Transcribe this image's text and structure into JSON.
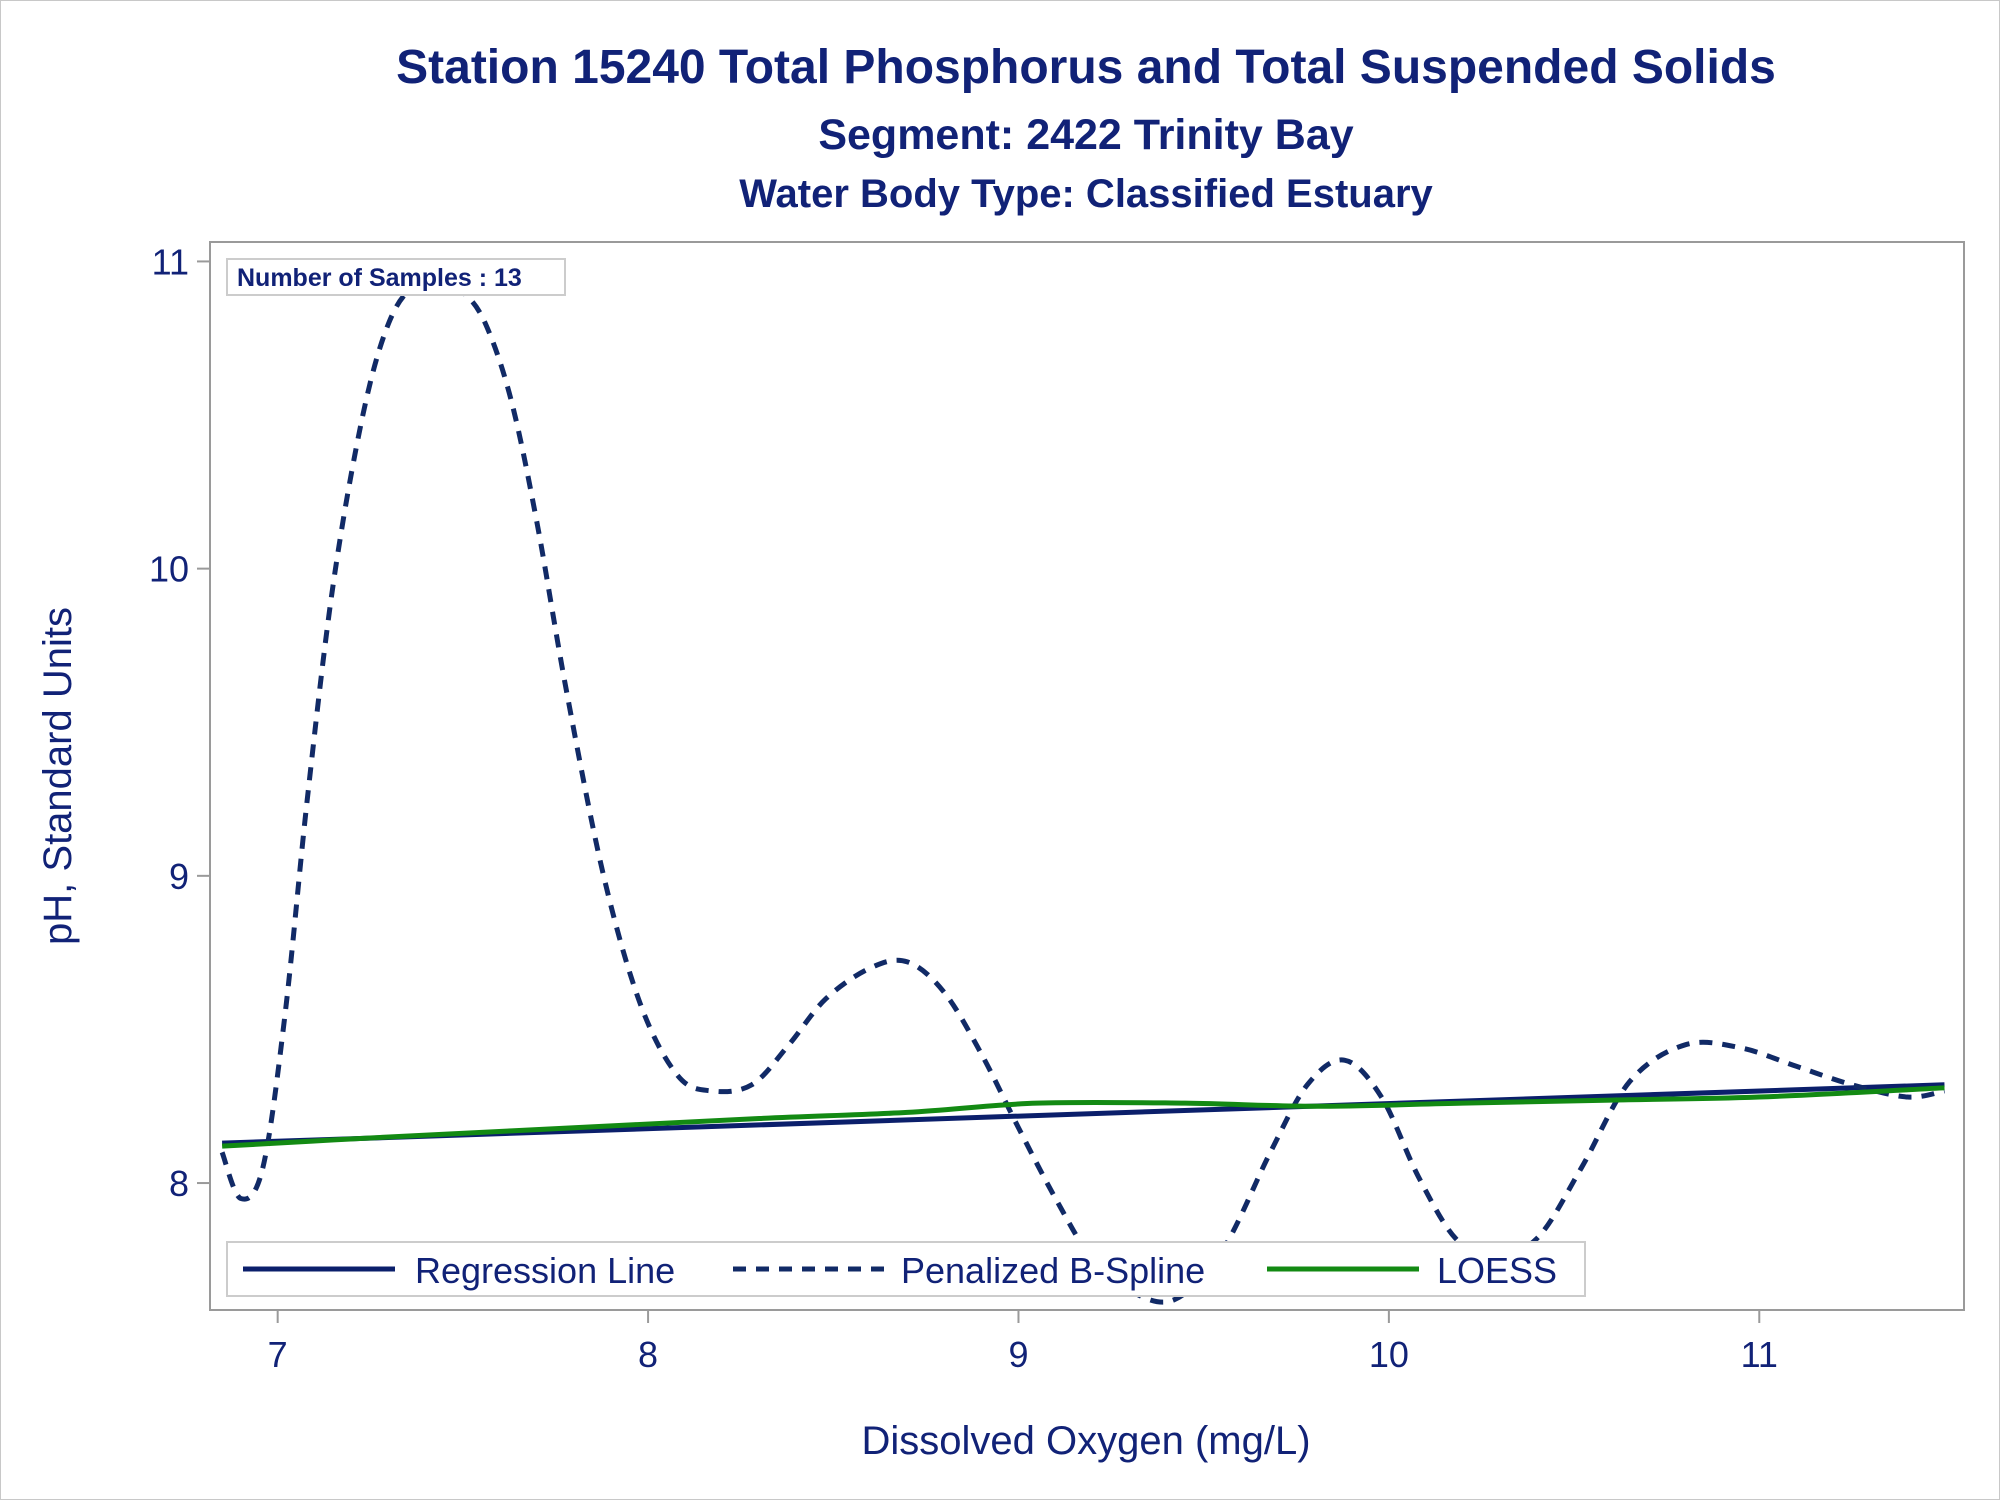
{
  "colors": {
    "text": "#112277",
    "regression": "#0b1f6b",
    "spline": "#112a66",
    "loess": "#138a13",
    "frame": "#9a9a9a",
    "box": "#cccccc"
  },
  "chart_data": {
    "type": "line",
    "title": "Station 15240  Total Phosphorus and Total Suspended Solids",
    "subtitle": "Segment: 2422  Trinity Bay",
    "subtitle2": "Water Body Type: Classified Estuary",
    "xlabel": "Dissolved Oxygen (mg/L)",
    "ylabel": "pH, Standard Units",
    "xlim": [
      6.82,
      11.55
    ],
    "ylim": [
      7.59,
      11.06
    ],
    "xticks": [
      7,
      8,
      9,
      10,
      11
    ],
    "yticks": [
      8,
      9,
      10,
      11
    ],
    "grid": false,
    "legend_position": "bottom-inside",
    "inset_label": "Number of Samples : 13",
    "series": [
      {
        "name": "Regression Line",
        "style": "solid",
        "icon": "solid-line-icon",
        "x": [
          6.85,
          11.5
        ],
        "y": [
          8.13,
          8.32
        ]
      },
      {
        "name": "Penalized B-Spline",
        "style": "dashed",
        "icon": "dashed-line-icon",
        "x": [
          6.85,
          6.9,
          6.96,
          7.02,
          7.08,
          7.15,
          7.23,
          7.3,
          7.37,
          7.45,
          7.5,
          7.56,
          7.63,
          7.7,
          7.78,
          7.88,
          7.98,
          8.08,
          8.17,
          8.28,
          8.38,
          8.48,
          8.6,
          8.7,
          8.8,
          8.9,
          9.0,
          9.1,
          9.2,
          9.3,
          9.42,
          9.55,
          9.68,
          9.78,
          9.88,
          9.98,
          10.08,
          10.18,
          10.28,
          10.4,
          10.52,
          10.65,
          10.8,
          10.95,
          11.1,
          11.25,
          11.4,
          11.5
        ],
        "y": [
          8.1,
          7.95,
          8.05,
          8.55,
          9.25,
          9.95,
          10.5,
          10.8,
          10.92,
          10.92,
          10.9,
          10.8,
          10.55,
          10.15,
          9.6,
          9.0,
          8.58,
          8.35,
          8.3,
          8.32,
          8.45,
          8.6,
          8.7,
          8.72,
          8.62,
          8.42,
          8.18,
          7.95,
          7.75,
          7.65,
          7.62,
          7.78,
          8.1,
          8.32,
          8.4,
          8.28,
          8.02,
          7.82,
          7.76,
          7.82,
          8.05,
          8.33,
          8.45,
          8.44,
          8.38,
          8.32,
          8.28,
          8.3
        ]
      },
      {
        "name": "LOESS",
        "style": "solid",
        "icon": "green-line-icon",
        "x": [
          6.85,
          7.3,
          7.8,
          8.3,
          8.7,
          9.05,
          9.45,
          9.8,
          10.2,
          10.6,
          11.0,
          11.5
        ],
        "y": [
          8.12,
          8.15,
          8.18,
          8.21,
          8.23,
          8.26,
          8.26,
          8.25,
          8.26,
          8.27,
          8.28,
          8.31
        ]
      }
    ]
  }
}
